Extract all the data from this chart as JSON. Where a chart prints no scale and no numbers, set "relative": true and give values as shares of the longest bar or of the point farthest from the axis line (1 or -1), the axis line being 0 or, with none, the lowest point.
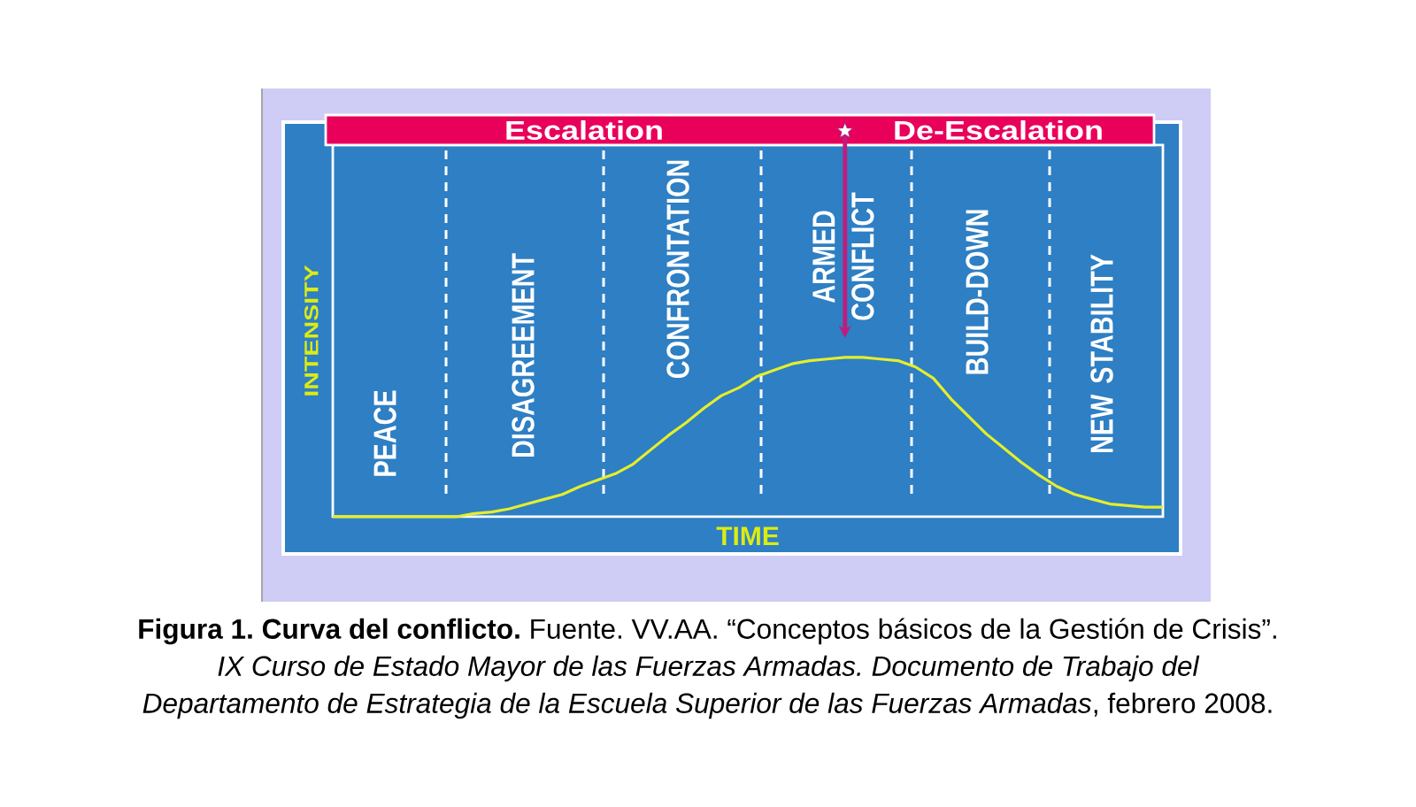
{
  "chart_data": {
    "type": "line",
    "relative": true,
    "xlabel": "TIME",
    "ylabel": "INTENSITY",
    "color": "#e4ee2c",
    "categories": [
      null,
      null,
      null,
      null,
      null,
      null,
      null,
      null,
      null,
      null,
      null,
      null,
      null,
      null,
      null,
      null,
      null,
      null,
      null,
      null,
      null,
      null,
      null,
      null,
      null,
      null,
      null,
      null,
      null,
      null,
      null,
      null,
      null,
      null,
      null,
      null,
      null,
      null,
      null,
      null,
      null,
      null,
      null,
      null,
      null,
      null,
      null,
      null
    ],
    "values": [
      0,
      0,
      0,
      0,
      0,
      0,
      0,
      0,
      0.02,
      0.03,
      0.05,
      0.08,
      0.11,
      0.14,
      0.19,
      0.23,
      0.27,
      0.33,
      0.42,
      0.51,
      0.59,
      0.68,
      0.76,
      0.81,
      0.88,
      0.92,
      0.96,
      0.98,
      0.99,
      1,
      1,
      0.99,
      0.98,
      0.94,
      0.87,
      0.74,
      0.63,
      0.52,
      0.43,
      0.34,
      0.26,
      0.19,
      0.14,
      0.11,
      0.08,
      0.07,
      0.06,
      0.06
    ],
    "annotations": [
      "Escalation",
      "De-Escalation",
      "PEACE",
      "DISAGREEMENT",
      "CONFRONTATION",
      "ARMED CONFLICT",
      "BUILD-DOWN",
      "NEW STABILITY",
      "**Figura 1. Curva del conflicto.** Fuente. VV.AA. “Conceptos básicos de la Gestión de Crisis”. *IX Curso de Estado Mayor de las Fuerzas Armadas. Documento de Trabajo del Departamento de Estrategia de la Escuela Superior de las Fuerzas Armadas*, febrero 2008."
    ]
  }
}
